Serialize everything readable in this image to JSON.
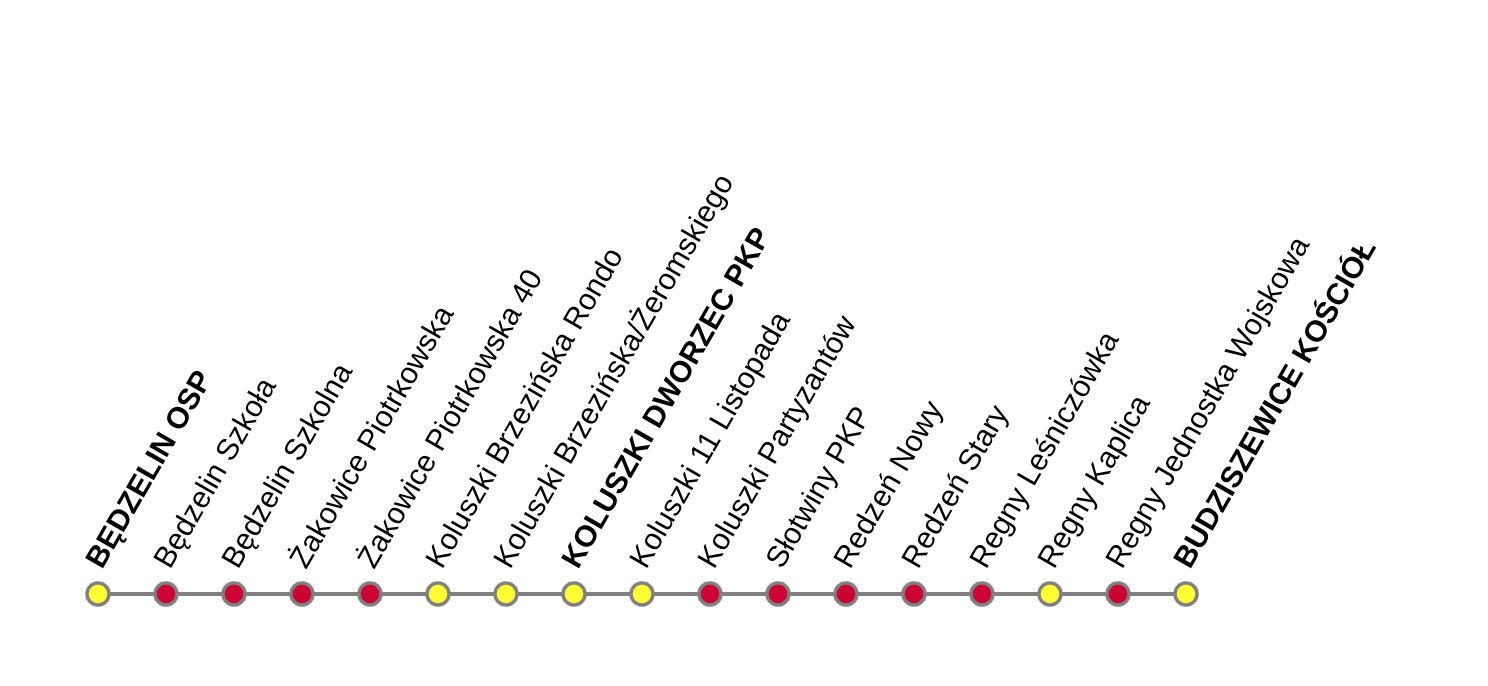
{
  "colors": {
    "line": "#808080",
    "stop_outline": "#808080",
    "yellow_stop": "#ffff33",
    "red_stop": "#cc0033",
    "label": "#000000",
    "background": "#ffffff"
  },
  "stops": [
    {
      "name": "BĘDZELIN OSP",
      "major": true,
      "color": "yellow"
    },
    {
      "name": "Będzelin Szkoła",
      "major": false,
      "color": "red"
    },
    {
      "name": "Będzelin Szkolna",
      "major": false,
      "color": "red"
    },
    {
      "name": "Żakowice Piotrkowska",
      "major": false,
      "color": "red"
    },
    {
      "name": "Żakowice Piotrkowska 40",
      "major": false,
      "color": "red"
    },
    {
      "name": "Koluszki Brzezińska Rondo",
      "major": false,
      "color": "yellow"
    },
    {
      "name": "Koluszki Brzezińska/Żeromskiego",
      "major": false,
      "color": "yellow"
    },
    {
      "name": "KOLUSZKI DWORZEC PKP",
      "major": true,
      "color": "yellow"
    },
    {
      "name": "Koluszki 11 Listopada",
      "major": false,
      "color": "yellow"
    },
    {
      "name": "Koluszki Partyzantów",
      "major": false,
      "color": "red"
    },
    {
      "name": "Słotwiny PKP",
      "major": false,
      "color": "red"
    },
    {
      "name": "Redzeń Nowy",
      "major": false,
      "color": "red"
    },
    {
      "name": "Redzeń Stary",
      "major": false,
      "color": "red"
    },
    {
      "name": "Regny Leśniczówka",
      "major": false,
      "color": "red"
    },
    {
      "name": "Regny Kaplica",
      "major": false,
      "color": "yellow"
    },
    {
      "name": "Regny Jednostka Wojskowa",
      "major": false,
      "color": "red"
    },
    {
      "name": "BUDZISZEWICE KOŚCIÓŁ",
      "major": true,
      "color": "yellow"
    }
  ]
}
